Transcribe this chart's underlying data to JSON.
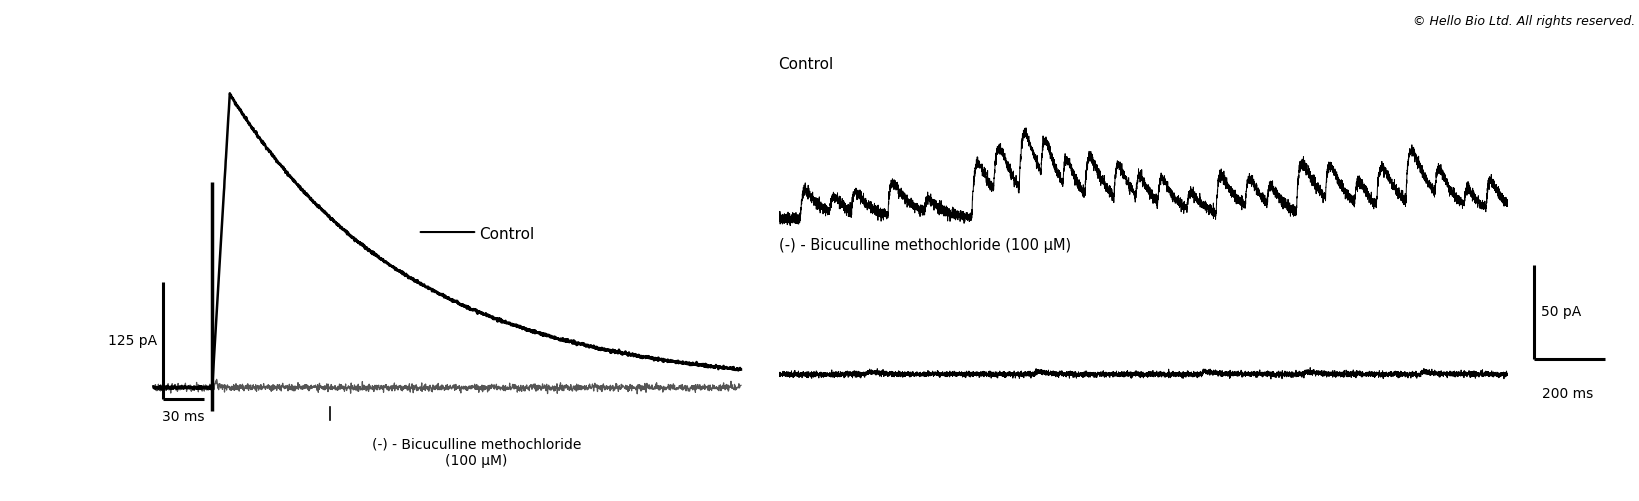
{
  "background_color": "#ffffff",
  "copyright_text": "© Hello Bio Ltd. All rights reserved.",
  "copyright_fontsize": 9,
  "left_panel": {
    "scalebar_x_label": "30 ms",
    "scalebar_y_label": "125 pA",
    "control_label": "Control",
    "drug_label": "(-) - Bicuculline methochloride\n(100 μM)"
  },
  "right_panel": {
    "control_label": "Control",
    "drug_label": "(-) - Bicuculline methochloride (100 μM)",
    "scalebar_x_label": "200 ms",
    "scalebar_y_label": "50 pA"
  }
}
